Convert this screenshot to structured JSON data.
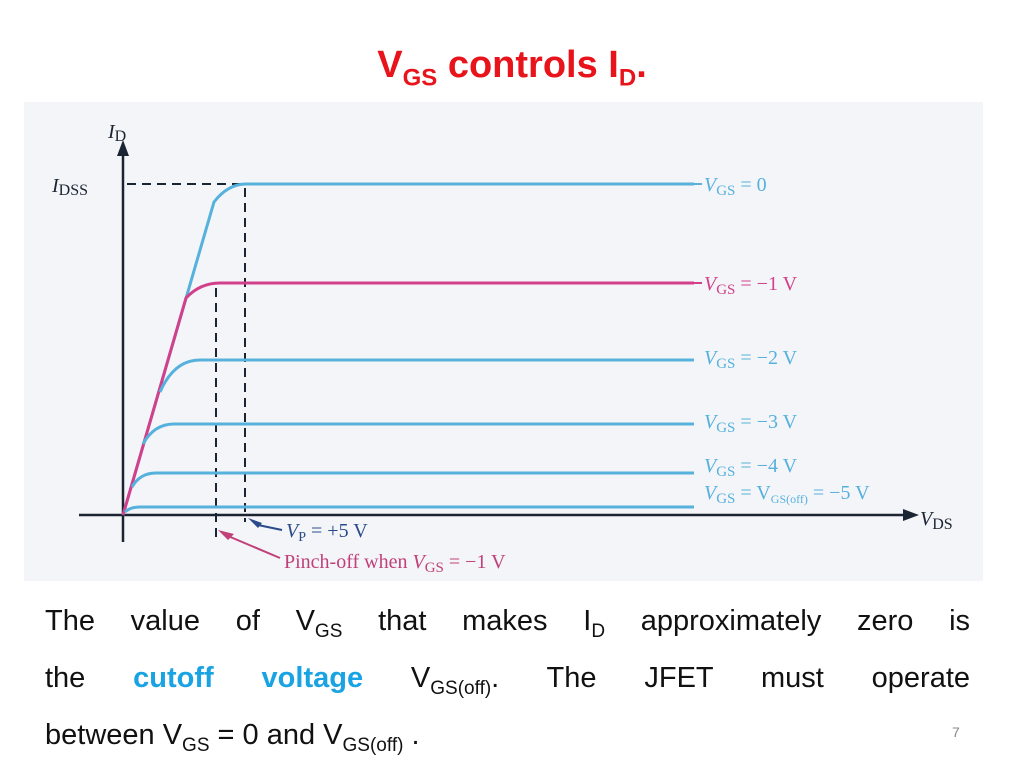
{
  "title": {
    "main": "V",
    "sub1": "GS",
    "mid": " controls I",
    "sub2": "D",
    "end": "."
  },
  "figure": {
    "y_axis_label_main": "I",
    "y_axis_label_sub": "D",
    "idss_label_main": "I",
    "idss_label_sub": "DSS",
    "x_axis_label_main": "V",
    "x_axis_label_sub": "DS",
    "curves": [
      {
        "label_main": "V",
        "label_sub": "GS",
        "label_rest": " = 0",
        "color": "#56b1dd"
      },
      {
        "label_main": "V",
        "label_sub": "GS",
        "label_rest": " = −1 V",
        "color": "#d2408c"
      },
      {
        "label_main": "V",
        "label_sub": "GS",
        "label_rest": " = −2 V",
        "color": "#56b1dd"
      },
      {
        "label_main": "V",
        "label_sub": "GS",
        "label_rest": " = −3 V",
        "color": "#56b1dd"
      },
      {
        "label_main": "V",
        "label_sub": "GS",
        "label_rest": " = −4 V",
        "color": "#56b1dd"
      },
      {
        "label_main": "V",
        "label_sub": "GS",
        "label_rest": " = V",
        "label_sub2": "GS(off)",
        "label_rest2": " = −5 V",
        "color": "#56b1dd"
      }
    ],
    "vp_label_main": "V",
    "vp_label_sub": "P",
    "vp_label_rest": " = +5 V",
    "pinchoff_label_pre": "Pinch-off when ",
    "pinchoff_label_main": "V",
    "pinchoff_label_sub": "GS",
    "pinchoff_label_rest": " = −1 V",
    "colors": {
      "blue": "#56b1dd",
      "magenta": "#d2408c",
      "axis": "#1b2433",
      "pinch_label": "#c0407a",
      "vp_label": "#2a4a8a"
    }
  },
  "body": {
    "l1_a": "The  value  of  V",
    "l1_sub1": "GS",
    "l1_b": "  that  makes  I",
    "l1_sub2": "D",
    "l1_c": "  approximately  zero  is",
    "l2_a": "the  ",
    "l2_hl": "cutoff  voltage",
    "l2_b": "  V",
    "l2_sub": "GS(off)",
    "l2_c": ".  The  JFET  must  operate",
    "l3_a": "between V",
    "l3_sub1": "GS",
    "l3_b": " = 0 and V",
    "l3_sub2": "GS(off)",
    "l3_c": " ."
  },
  "page_number": "7"
}
